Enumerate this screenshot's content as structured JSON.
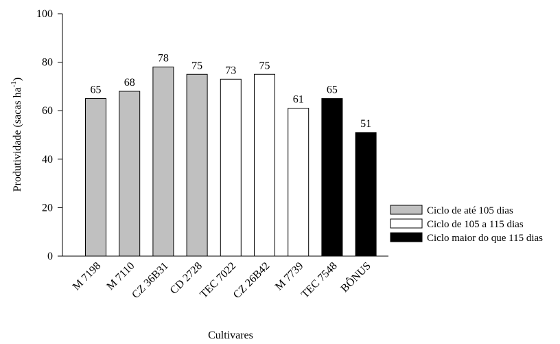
{
  "chart_data": {
    "type": "bar",
    "categories": [
      "M 7198",
      "M 7110",
      "CZ 36B31",
      "CD 2728",
      "TEC 7022",
      "CZ 26B42",
      "M 7739",
      "TEC 7548",
      "BÔNUS"
    ],
    "values": [
      65,
      68,
      78,
      75,
      73,
      75,
      61,
      65,
      51
    ],
    "groups": [
      0,
      0,
      0,
      0,
      1,
      1,
      1,
      2,
      2
    ],
    "legend": [
      {
        "name": "Ciclo de até 105 dias",
        "color": "#c0c0c0"
      },
      {
        "name": "Ciclo de 105 a 115 dias",
        "color": "#ffffff"
      },
      {
        "name": "Ciclo maior do que 115 dias",
        "color": "#000000"
      }
    ],
    "xlabel": "Cultivares",
    "ylabel": "Produtividade (sacas ha",
    "ylabel_superscript": "-1",
    "ylabel_close": ")",
    "ylim": [
      0,
      100
    ],
    "yticks": [
      0,
      20,
      40,
      60,
      80,
      100
    ],
    "grid": false,
    "legend_position": "bottom-right"
  }
}
